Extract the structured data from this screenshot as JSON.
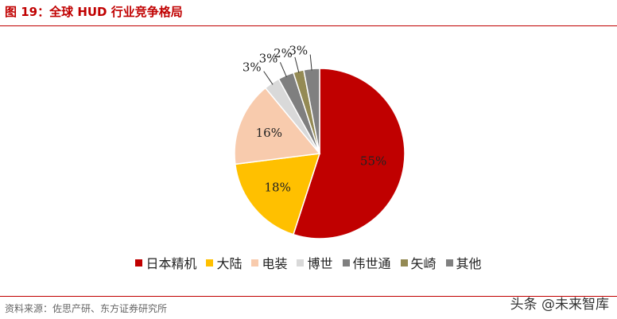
{
  "figure": {
    "title": "图 19：全球 HUD 行业竞争格局",
    "source": "资料来源：佐思产研、东方证券研究所",
    "watermark": "头条 @未来智库"
  },
  "chart_data": {
    "type": "pie",
    "title": "",
    "legend_position": "bottom",
    "slices": [
      {
        "name": "日本精机",
        "value": 55,
        "label": "55%",
        "color": "#c00000"
      },
      {
        "name": "大陆",
        "value": 18,
        "label": "18%",
        "color": "#ffc000"
      },
      {
        "name": "电装",
        "value": 16,
        "label": "16%",
        "color": "#f8cbad"
      },
      {
        "name": "博世",
        "value": 3,
        "label": "3%",
        "color": "#d9d9d9"
      },
      {
        "name": "伟世通",
        "value": 3,
        "label": "3%",
        "color": "#7f7f7f"
      },
      {
        "name": "矢崎",
        "value": 2,
        "label": "2%",
        "color": "#948a54"
      },
      {
        "name": "其他",
        "value": 3,
        "label": "3%",
        "color": "#808080"
      }
    ]
  }
}
